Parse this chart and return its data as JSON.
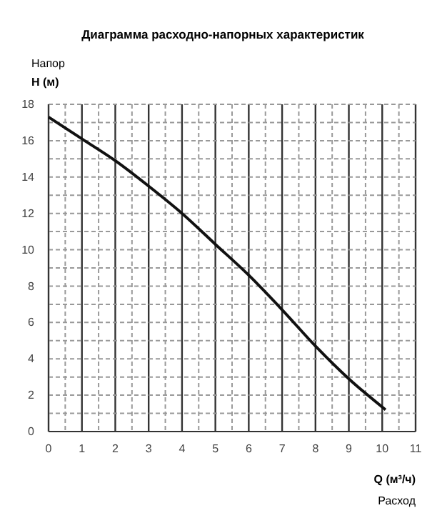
{
  "chart_data": {
    "type": "line",
    "title": "Диаграмма расходно-напорных характеристик",
    "xlabel": "Q (м³/ч)\nРасход",
    "ylabel": "Напор\nH (м)",
    "x": [
      0,
      1,
      2,
      3,
      4,
      5,
      6,
      7,
      8,
      9,
      10.1
    ],
    "series": [
      {
        "color": "#111111",
        "values": [
          17.3,
          16.1,
          14.9,
          13.5,
          12.0,
          10.3,
          8.6,
          6.7,
          4.7,
          2.9,
          1.2
        ]
      }
    ],
    "xlim": [
      0,
      11
    ],
    "xticks": [
      0,
      1,
      2,
      3,
      4,
      5,
      6,
      7,
      8,
      9,
      10,
      11
    ],
    "ylim": [
      0,
      18
    ],
    "yticks": [
      0,
      2,
      4,
      6,
      8,
      10,
      12,
      14,
      16,
      18
    ],
    "grid": true,
    "marker": "none",
    "line_style": "solid"
  }
}
